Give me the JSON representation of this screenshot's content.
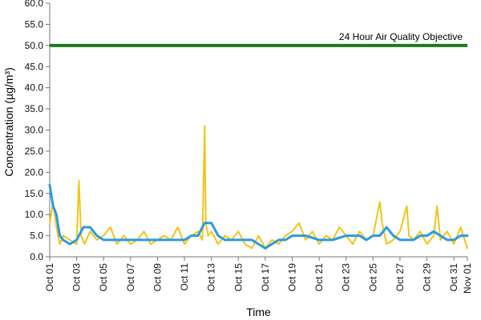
{
  "chart_data": {
    "type": "line",
    "title": "",
    "xlabel": "Time",
    "ylabel": "Concentration (µg/m³)",
    "ylim": [
      0,
      60
    ],
    "y_ticks": [
      "0.0",
      "5.0",
      "10.0",
      "15.0",
      "20.0",
      "25.0",
      "30.0",
      "35.0",
      "40.0",
      "45.0",
      "50.0",
      "55.0",
      "60.0"
    ],
    "x_range": [
      "2013-10-01",
      "2013-11-01"
    ],
    "x_ticks": [
      "Oct 01",
      "Oct 03",
      "Oct 05",
      "Oct 07",
      "Oct 09",
      "Oct 11",
      "Oct 13",
      "Oct 15",
      "Oct 17",
      "Oct 19",
      "Oct 21",
      "Oct 23",
      "Oct 25",
      "Oct 27",
      "Oct 29",
      "Oct 31",
      "Nov 01"
    ],
    "grid": false,
    "legend": "none",
    "objective": {
      "label": "24 Hour Air Quality Objective",
      "value": 50,
      "color": "#1a7a1a"
    },
    "series": [
      {
        "style": "hourly",
        "color": "#f2c418",
        "x": [
          "Oct 01 00:00",
          "Oct 01 06:00",
          "Oct 01 12:00",
          "Oct 01 18:00",
          "Oct 02 00:00",
          "Oct 02 12:00",
          "Oct 03 00:00",
          "Oct 03 04:00",
          "Oct 03 08:00",
          "Oct 03 14:00",
          "Oct 04 00:00",
          "Oct 04 12:00",
          "Oct 05 00:00",
          "Oct 05 12:00",
          "Oct 06 00:00",
          "Oct 06 12:00",
          "Oct 07 00:00",
          "Oct 07 12:00",
          "Oct 08 00:00",
          "Oct 08 12:00",
          "Oct 09 00:00",
          "Oct 09 12:00",
          "Oct 10 00:00",
          "Oct 10 12:00",
          "Oct 11 00:00",
          "Oct 11 12:00",
          "Oct 12 00:00",
          "Oct 12 08:00",
          "Oct 12 12:00",
          "Oct 12 14:00",
          "Oct 12 18:00",
          "Oct 13 00:00",
          "Oct 13 12:00",
          "Oct 14 00:00",
          "Oct 14 12:00",
          "Oct 15 00:00",
          "Oct 15 12:00",
          "Oct 16 00:00",
          "Oct 16 12:00",
          "Oct 17 00:00",
          "Oct 17 12:00",
          "Oct 18 00:00",
          "Oct 18 12:00",
          "Oct 19 00:00",
          "Oct 19 12:00",
          "Oct 20 00:00",
          "Oct 20 12:00",
          "Oct 21 00:00",
          "Oct 21 12:00",
          "Oct 22 00:00",
          "Oct 22 12:00",
          "Oct 23 00:00",
          "Oct 23 12:00",
          "Oct 24 00:00",
          "Oct 24 12:00",
          "Oct 25 00:00",
          "Oct 25 12:00",
          "Oct 25 16:00",
          "Oct 26 00:00",
          "Oct 26 12:00",
          "Oct 27 00:00",
          "Oct 27 12:00",
          "Oct 27 16:00",
          "Oct 28 00:00",
          "Oct 28 12:00",
          "Oct 29 00:00",
          "Oct 29 12:00",
          "Oct 29 18:00",
          "Oct 30 00:00",
          "Oct 30 12:00",
          "Oct 31 00:00",
          "Oct 31 12:00",
          "Nov 01 00:00"
        ],
        "values": [
          8,
          13,
          7,
          3,
          5,
          4,
          3,
          18,
          5,
          3,
          6,
          4,
          5,
          7,
          3,
          5,
          3,
          4,
          6,
          3,
          4,
          5,
          4,
          7,
          3,
          5,
          6,
          4,
          31,
          8,
          5,
          6,
          3,
          5,
          4,
          6,
          3,
          2,
          5,
          2,
          4,
          3,
          5,
          6,
          8,
          4,
          6,
          3,
          5,
          4,
          7,
          5,
          3,
          6,
          4,
          5,
          13,
          8,
          3,
          4,
          6,
          12,
          5,
          4,
          6,
          3,
          5,
          12,
          4,
          6,
          3,
          7,
          2
        ]
      },
      {
        "style": "rolling",
        "color": "#2b9be0",
        "x": [
          "Oct 01 00:00",
          "Oct 01 06:00",
          "Oct 01 12:00",
          "Oct 01 18:00",
          "Oct 02 00:00",
          "Oct 02 12:00",
          "Oct 03 00:00",
          "Oct 03 12:00",
          "Oct 04 00:00",
          "Oct 04 12:00",
          "Oct 05 00:00",
          "Oct 06 00:00",
          "Oct 07 00:00",
          "Oct 08 00:00",
          "Oct 09 00:00",
          "Oct 10 00:00",
          "Oct 11 00:00",
          "Oct 11 12:00",
          "Oct 12 00:00",
          "Oct 12 12:00",
          "Oct 13 00:00",
          "Oct 13 12:00",
          "Oct 14 00:00",
          "Oct 15 00:00",
          "Oct 16 00:00",
          "Oct 16 12:00",
          "Oct 17 00:00",
          "Oct 17 12:00",
          "Oct 18 00:00",
          "Oct 18 12:00",
          "Oct 19 00:00",
          "Oct 20 00:00",
          "Oct 21 00:00",
          "Oct 21 12:00",
          "Oct 22 00:00",
          "Oct 23 00:00",
          "Oct 24 00:00",
          "Oct 24 12:00",
          "Oct 25 00:00",
          "Oct 25 12:00",
          "Oct 26 00:00",
          "Oct 26 12:00",
          "Oct 27 00:00",
          "Oct 28 00:00",
          "Oct 28 12:00",
          "Oct 29 00:00",
          "Oct 29 12:00",
          "Oct 30 00:00",
          "Oct 30 12:00",
          "Oct 31 00:00",
          "Oct 31 12:00",
          "Nov 01 00:00"
        ],
        "values": [
          17,
          12,
          10,
          5,
          4,
          3,
          4,
          7,
          7,
          5,
          4,
          4,
          4,
          4,
          4,
          4,
          4,
          5,
          5,
          8,
          8,
          5,
          4,
          4,
          4,
          3,
          2,
          3,
          4,
          4,
          5,
          5,
          4,
          4,
          4,
          5,
          5,
          4,
          5,
          5,
          7,
          5,
          4,
          4,
          5,
          5,
          6,
          5,
          4,
          4,
          5,
          5
        ]
      }
    ]
  }
}
